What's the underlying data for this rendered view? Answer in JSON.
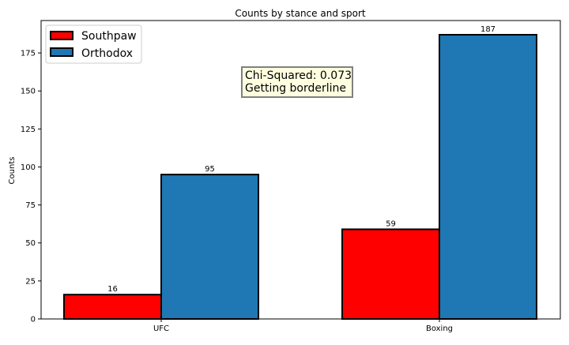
{
  "chart_data": {
    "type": "bar",
    "title": "Counts by stance and sport",
    "xlabel": "",
    "ylabel": "Counts",
    "categories": [
      "UFC",
      "Boxing"
    ],
    "series": [
      {
        "name": "Southpaw",
        "values": [
          16,
          59
        ],
        "color": "#ff0000"
      },
      {
        "name": "Orthodox",
        "values": [
          95,
          187
        ],
        "color": "#1f77b4"
      }
    ],
    "ylim": [
      0,
      196.35
    ],
    "yticks": [
      0,
      25,
      50,
      75,
      100,
      125,
      150,
      175
    ],
    "legend_position": "top-left",
    "grid": false,
    "annotation": {
      "line1": "Chi-Squared: 0.073",
      "line2": "Getting borderline",
      "background": "#ffffe0",
      "border": "#808080"
    }
  }
}
